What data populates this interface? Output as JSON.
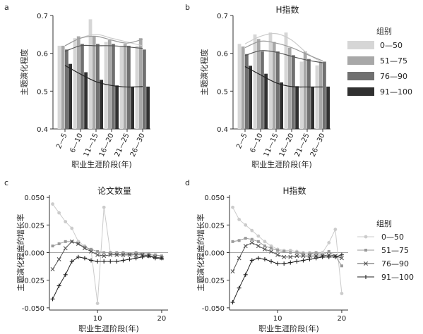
{
  "legend": {
    "top_title": "组别",
    "bottom_title": "组别",
    "groups": [
      "0—50",
      "51—75",
      "76—90",
      "91—100"
    ],
    "bar_colors": [
      "#d6d6d6",
      "#a8a8a8",
      "#707070",
      "#303030"
    ],
    "line_colors": [
      "#cbcbcb",
      "#9a9a9a",
      "#555555",
      "#222222"
    ],
    "line_markers": [
      "dot",
      "square",
      "x",
      "plus"
    ],
    "placement": "right"
  },
  "chart_data": [
    {
      "type": "bar",
      "panel": "a",
      "title": "",
      "xlabel": "职业生涯阶段(年)",
      "ylabel": "主题演化程度",
      "ylim": [
        0.4,
        0.7
      ],
      "yticks": [
        "0.4",
        "0.5",
        "0.6",
        "0.7"
      ],
      "categories": [
        "2—5",
        "6—10",
        "11—15",
        "16—20",
        "21—25",
        "26—30"
      ],
      "series": [
        {
          "name": "0—50",
          "values": [
            0.62,
            0.64,
            0.69,
            0.63,
            0.62,
            0.62
          ],
          "trend": [
            0.62,
            0.64,
            0.65,
            0.64,
            0.63,
            0.62
          ]
        },
        {
          "name": "51—75",
          "values": [
            0.62,
            0.645,
            0.645,
            0.635,
            0.625,
            0.64
          ],
          "trend": [
            0.62,
            0.64,
            0.645,
            0.635,
            0.627,
            0.637
          ]
        },
        {
          "name": "76—90",
          "values": [
            0.61,
            0.625,
            0.625,
            0.625,
            0.62,
            0.61
          ],
          "trend": [
            0.605,
            0.62,
            0.62,
            0.62,
            0.617,
            0.613
          ]
        },
        {
          "name": "91—100",
          "values": [
            0.572,
            0.55,
            0.53,
            0.515,
            0.512,
            0.512
          ],
          "trend": [
            0.568,
            0.545,
            0.525,
            0.515,
            0.511,
            0.512
          ]
        }
      ]
    },
    {
      "type": "bar",
      "panel": "b",
      "title": "H指数",
      "xlabel": "职业生涯阶段(年)",
      "ylabel": "主题演化程度",
      "ylim": [
        0.4,
        0.7
      ],
      "yticks": [
        "0.4",
        "0.5",
        "0.6",
        "0.7"
      ],
      "categories": [
        "2—5",
        "6—10",
        "11—15",
        "16—20",
        "21—25",
        "26—30"
      ],
      "series": [
        {
          "name": "0—50",
          "values": [
            0.625,
            0.65,
            0.655,
            0.655,
            0.578,
            0.568
          ],
          "trend": [
            0.625,
            0.645,
            0.652,
            0.635,
            0.6,
            0.575
          ]
        },
        {
          "name": "51—75",
          "values": [
            0.618,
            0.638,
            0.63,
            0.615,
            0.605,
            0.578
          ],
          "trend": [
            0.615,
            0.632,
            0.627,
            0.615,
            0.597,
            0.58
          ]
        },
        {
          "name": "76—90",
          "values": [
            0.598,
            0.605,
            0.605,
            0.595,
            0.585,
            0.578
          ],
          "trend": [
            0.594,
            0.607,
            0.603,
            0.592,
            0.582,
            0.575
          ]
        },
        {
          "name": "91—100",
          "values": [
            0.567,
            0.546,
            0.523,
            0.513,
            0.512,
            0.512
          ],
          "trend": [
            0.565,
            0.543,
            0.522,
            0.512,
            0.511,
            0.511
          ]
        }
      ]
    },
    {
      "type": "line",
      "panel": "c",
      "title": "论文数量",
      "xlabel": "职业生涯阶段(年)",
      "ylabel": "主题演化程度的增长率",
      "xlim": [
        2.5,
        21
      ],
      "ylim": [
        -0.052,
        0.052
      ],
      "xticks": [
        10,
        20
      ],
      "yticks": [
        "-0.050",
        "-0.025",
        "0.000",
        "0.025",
        "0.050"
      ],
      "x": [
        3,
        4,
        5,
        6,
        7,
        8,
        9,
        10,
        11,
        12,
        13,
        14,
        15,
        16,
        17,
        18,
        19,
        20
      ],
      "series": [
        {
          "name": "0—50",
          "values": [
            0.044,
            0.036,
            0.028,
            0.022,
            0.01,
            0.006,
            0.002,
            -0.046,
            0.041,
            0.0,
            -0.002,
            -0.003,
            -0.002,
            -0.004,
            -0.003,
            -0.001,
            -0.004,
            -0.005
          ]
        },
        {
          "name": "51—75",
          "values": [
            0.006,
            0.008,
            0.01,
            0.01,
            0.008,
            0.005,
            0.003,
            0.001,
            0.0,
            0.0,
            0.0,
            0.0,
            -0.001,
            0.0,
            -0.001,
            -0.001,
            -0.002,
            -0.003
          ]
        },
        {
          "name": "76—90",
          "values": [
            -0.015,
            -0.006,
            0.004,
            0.01,
            0.008,
            0.004,
            0.001,
            -0.002,
            -0.003,
            -0.002,
            -0.002,
            -0.002,
            -0.002,
            -0.002,
            -0.002,
            -0.003,
            -0.004,
            -0.005
          ]
        },
        {
          "name": "91—100",
          "values": [
            -0.042,
            -0.03,
            -0.02,
            -0.008,
            -0.004,
            -0.005,
            -0.007,
            -0.008,
            -0.008,
            -0.008,
            -0.008,
            -0.007,
            -0.006,
            -0.005,
            -0.004,
            -0.003,
            -0.005,
            -0.005
          ]
        }
      ]
    },
    {
      "type": "line",
      "panel": "d",
      "title": "H指数",
      "xlabel": "职业生涯阶段(年)",
      "ylabel": "主题演化程度的增长率",
      "xlim": [
        2.5,
        21
      ],
      "ylim": [
        -0.052,
        0.052
      ],
      "xticks": [
        10,
        20
      ],
      "yticks": [
        "-0.050",
        "-0.025",
        "0.000",
        "0.025",
        "0.050"
      ],
      "x": [
        3,
        4,
        5,
        6,
        7,
        8,
        9,
        10,
        11,
        12,
        13,
        14,
        15,
        16,
        17,
        18,
        19,
        20
      ],
      "series": [
        {
          "name": "0—50",
          "values": [
            0.041,
            0.03,
            0.025,
            0.02,
            0.015,
            0.01,
            0.006,
            0.003,
            0.002,
            0.002,
            0.001,
            0.0,
            0.0,
            -0.003,
            0.0,
            0.009,
            0.021,
            -0.037
          ]
        },
        {
          "name": "51—75",
          "values": [
            0.01,
            0.011,
            0.013,
            0.012,
            0.01,
            0.006,
            0.004,
            0.002,
            0.001,
            0.0,
            0.0,
            -0.001,
            -0.001,
            0.0,
            -0.002,
            0.001,
            -0.003,
            -0.012
          ]
        },
        {
          "name": "76—90",
          "values": [
            -0.017,
            -0.005,
            0.006,
            0.009,
            0.006,
            0.003,
            0.001,
            -0.002,
            -0.004,
            -0.004,
            -0.003,
            -0.003,
            -0.003,
            -0.003,
            -0.003,
            -0.002,
            -0.003,
            -0.005
          ]
        },
        {
          "name": "91—100",
          "values": [
            -0.045,
            -0.032,
            -0.02,
            -0.007,
            -0.005,
            -0.006,
            -0.008,
            -0.01,
            -0.01,
            -0.009,
            -0.008,
            -0.007,
            -0.006,
            -0.005,
            -0.004,
            -0.004,
            -0.004,
            -0.002
          ]
        }
      ]
    }
  ]
}
